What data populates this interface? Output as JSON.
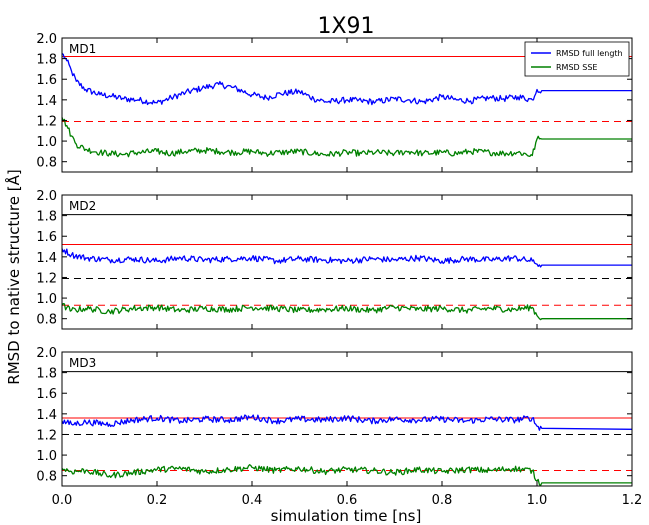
{
  "chart_data": {
    "type": "line",
    "title": "1X91",
    "xlabel": "simulation time [ns]",
    "ylabel": "RMSD to native structure [Å]",
    "xlim": [
      0.0,
      1.2
    ],
    "ylim": [
      0.7,
      2.0
    ],
    "x_ticks": [
      "0.0",
      "0.2",
      "0.4",
      "0.6",
      "0.8",
      "1.0",
      "1.2"
    ],
    "y_ticks": [
      "2.0",
      "1.8",
      "1.6",
      "1.4",
      "1.2",
      "1.0",
      "0.8"
    ],
    "legend": {
      "placement": "top-right",
      "entries": [
        "RMSD full length",
        "RMSD SSE"
      ]
    },
    "series_colors": {
      "RMSD full length": "#0000ff",
      "RMSD SSE": "#008000"
    },
    "grid": false,
    "panels": [
      {
        "label": "MD1",
        "has_legend": true,
        "hlines": [
          {
            "y": 1.82,
            "color": "#ff0000",
            "style": "solid"
          },
          {
            "y": 1.19,
            "color": "#ff0000",
            "style": "dashed"
          }
        ],
        "series": [
          {
            "name": "RMSD full length",
            "x": [
              0.0,
              0.01,
              0.02,
              0.03,
              0.05,
              0.08,
              0.1,
              0.13,
              0.16,
              0.2,
              0.23,
              0.26,
              0.3,
              0.33,
              0.36,
              0.4,
              0.43,
              0.46,
              0.5,
              0.53,
              0.56,
              0.6,
              0.63,
              0.66,
              0.7,
              0.73,
              0.76,
              0.8,
              0.83,
              0.86,
              0.9,
              0.93,
              0.96,
              0.99,
              1.0,
              1.01,
              1.2
            ],
            "values": [
              1.85,
              1.78,
              1.68,
              1.58,
              1.5,
              1.45,
              1.44,
              1.41,
              1.4,
              1.37,
              1.42,
              1.47,
              1.52,
              1.55,
              1.52,
              1.45,
              1.42,
              1.46,
              1.48,
              1.41,
              1.38,
              1.4,
              1.39,
              1.38,
              1.41,
              1.4,
              1.38,
              1.43,
              1.4,
              1.39,
              1.42,
              1.41,
              1.43,
              1.4,
              1.5,
              1.49,
              1.49
            ]
          },
          {
            "name": "RMSD SSE",
            "x": [
              0.0,
              0.01,
              0.02,
              0.03,
              0.05,
              0.08,
              0.1,
              0.13,
              0.16,
              0.2,
              0.23,
              0.26,
              0.3,
              0.33,
              0.36,
              0.4,
              0.43,
              0.46,
              0.5,
              0.53,
              0.56,
              0.6,
              0.63,
              0.66,
              0.7,
              0.73,
              0.76,
              0.8,
              0.83,
              0.86,
              0.9,
              0.93,
              0.96,
              0.99,
              1.0,
              1.01,
              1.2
            ],
            "values": [
              1.23,
              1.15,
              1.05,
              0.97,
              0.92,
              0.89,
              0.88,
              0.87,
              0.89,
              0.9,
              0.88,
              0.9,
              0.91,
              0.9,
              0.89,
              0.9,
              0.88,
              0.89,
              0.9,
              0.88,
              0.87,
              0.89,
              0.88,
              0.89,
              0.88,
              0.9,
              0.88,
              0.89,
              0.88,
              0.9,
              0.89,
              0.88,
              0.89,
              0.86,
              1.02,
              1.02,
              1.02
            ]
          }
        ]
      },
      {
        "label": "MD2",
        "has_legend": false,
        "hlines": [
          {
            "y": 1.81,
            "color": "#000000",
            "style": "solid"
          },
          {
            "y": 1.52,
            "color": "#ff0000",
            "style": "solid"
          },
          {
            "y": 1.19,
            "color": "#000000",
            "style": "dashed"
          },
          {
            "y": 0.93,
            "color": "#ff0000",
            "style": "dashed"
          }
        ],
        "series": [
          {
            "name": "RMSD full length",
            "x": [
              0.0,
              0.02,
              0.05,
              0.1,
              0.15,
              0.2,
              0.25,
              0.3,
              0.35,
              0.4,
              0.45,
              0.5,
              0.55,
              0.6,
              0.65,
              0.7,
              0.75,
              0.8,
              0.85,
              0.9,
              0.95,
              0.99,
              1.0,
              1.01,
              1.2
            ],
            "values": [
              1.48,
              1.42,
              1.39,
              1.37,
              1.38,
              1.36,
              1.39,
              1.37,
              1.38,
              1.39,
              1.36,
              1.38,
              1.37,
              1.36,
              1.38,
              1.37,
              1.39,
              1.36,
              1.38,
              1.37,
              1.39,
              1.36,
              1.33,
              1.32,
              1.32
            ]
          },
          {
            "name": "RMSD SSE",
            "x": [
              0.0,
              0.02,
              0.05,
              0.1,
              0.15,
              0.2,
              0.25,
              0.3,
              0.35,
              0.4,
              0.45,
              0.5,
              0.55,
              0.6,
              0.65,
              0.7,
              0.75,
              0.8,
              0.85,
              0.9,
              0.95,
              0.99,
              1.0,
              1.01,
              1.2
            ],
            "values": [
              0.93,
              0.88,
              0.9,
              0.87,
              0.9,
              0.91,
              0.88,
              0.9,
              0.89,
              0.91,
              0.9,
              0.88,
              0.89,
              0.9,
              0.88,
              0.91,
              0.89,
              0.9,
              0.88,
              0.9,
              0.89,
              0.91,
              0.83,
              0.8,
              0.8
            ]
          }
        ]
      },
      {
        "label": "MD3",
        "has_legend": false,
        "hlines": [
          {
            "y": 1.81,
            "color": "#000000",
            "style": "solid"
          },
          {
            "y": 1.36,
            "color": "#ff0000",
            "style": "solid"
          },
          {
            "y": 1.2,
            "color": "#000000",
            "style": "dashed"
          },
          {
            "y": 0.85,
            "color": "#ff0000",
            "style": "dashed"
          }
        ],
        "series": [
          {
            "name": "RMSD full length",
            "x": [
              0.0,
              0.02,
              0.05,
              0.1,
              0.15,
              0.2,
              0.25,
              0.3,
              0.35,
              0.4,
              0.45,
              0.5,
              0.55,
              0.6,
              0.65,
              0.7,
              0.75,
              0.8,
              0.85,
              0.9,
              0.95,
              0.99,
              1.0,
              1.01,
              1.2
            ],
            "values": [
              1.33,
              1.3,
              1.32,
              1.3,
              1.34,
              1.36,
              1.33,
              1.35,
              1.34,
              1.37,
              1.33,
              1.35,
              1.34,
              1.36,
              1.33,
              1.35,
              1.34,
              1.35,
              1.33,
              1.35,
              1.34,
              1.36,
              1.28,
              1.26,
              1.25
            ]
          },
          {
            "name": "RMSD SSE",
            "x": [
              0.0,
              0.02,
              0.05,
              0.1,
              0.15,
              0.2,
              0.25,
              0.3,
              0.35,
              0.4,
              0.45,
              0.5,
              0.55,
              0.6,
              0.65,
              0.7,
              0.75,
              0.8,
              0.85,
              0.9,
              0.95,
              0.99,
              1.0,
              1.01,
              1.2
            ],
            "values": [
              0.87,
              0.84,
              0.85,
              0.8,
              0.83,
              0.86,
              0.87,
              0.84,
              0.86,
              0.88,
              0.85,
              0.87,
              0.84,
              0.86,
              0.85,
              0.83,
              0.86,
              0.84,
              0.86,
              0.85,
              0.87,
              0.85,
              0.75,
              0.73,
              0.73
            ]
          }
        ]
      }
    ]
  }
}
